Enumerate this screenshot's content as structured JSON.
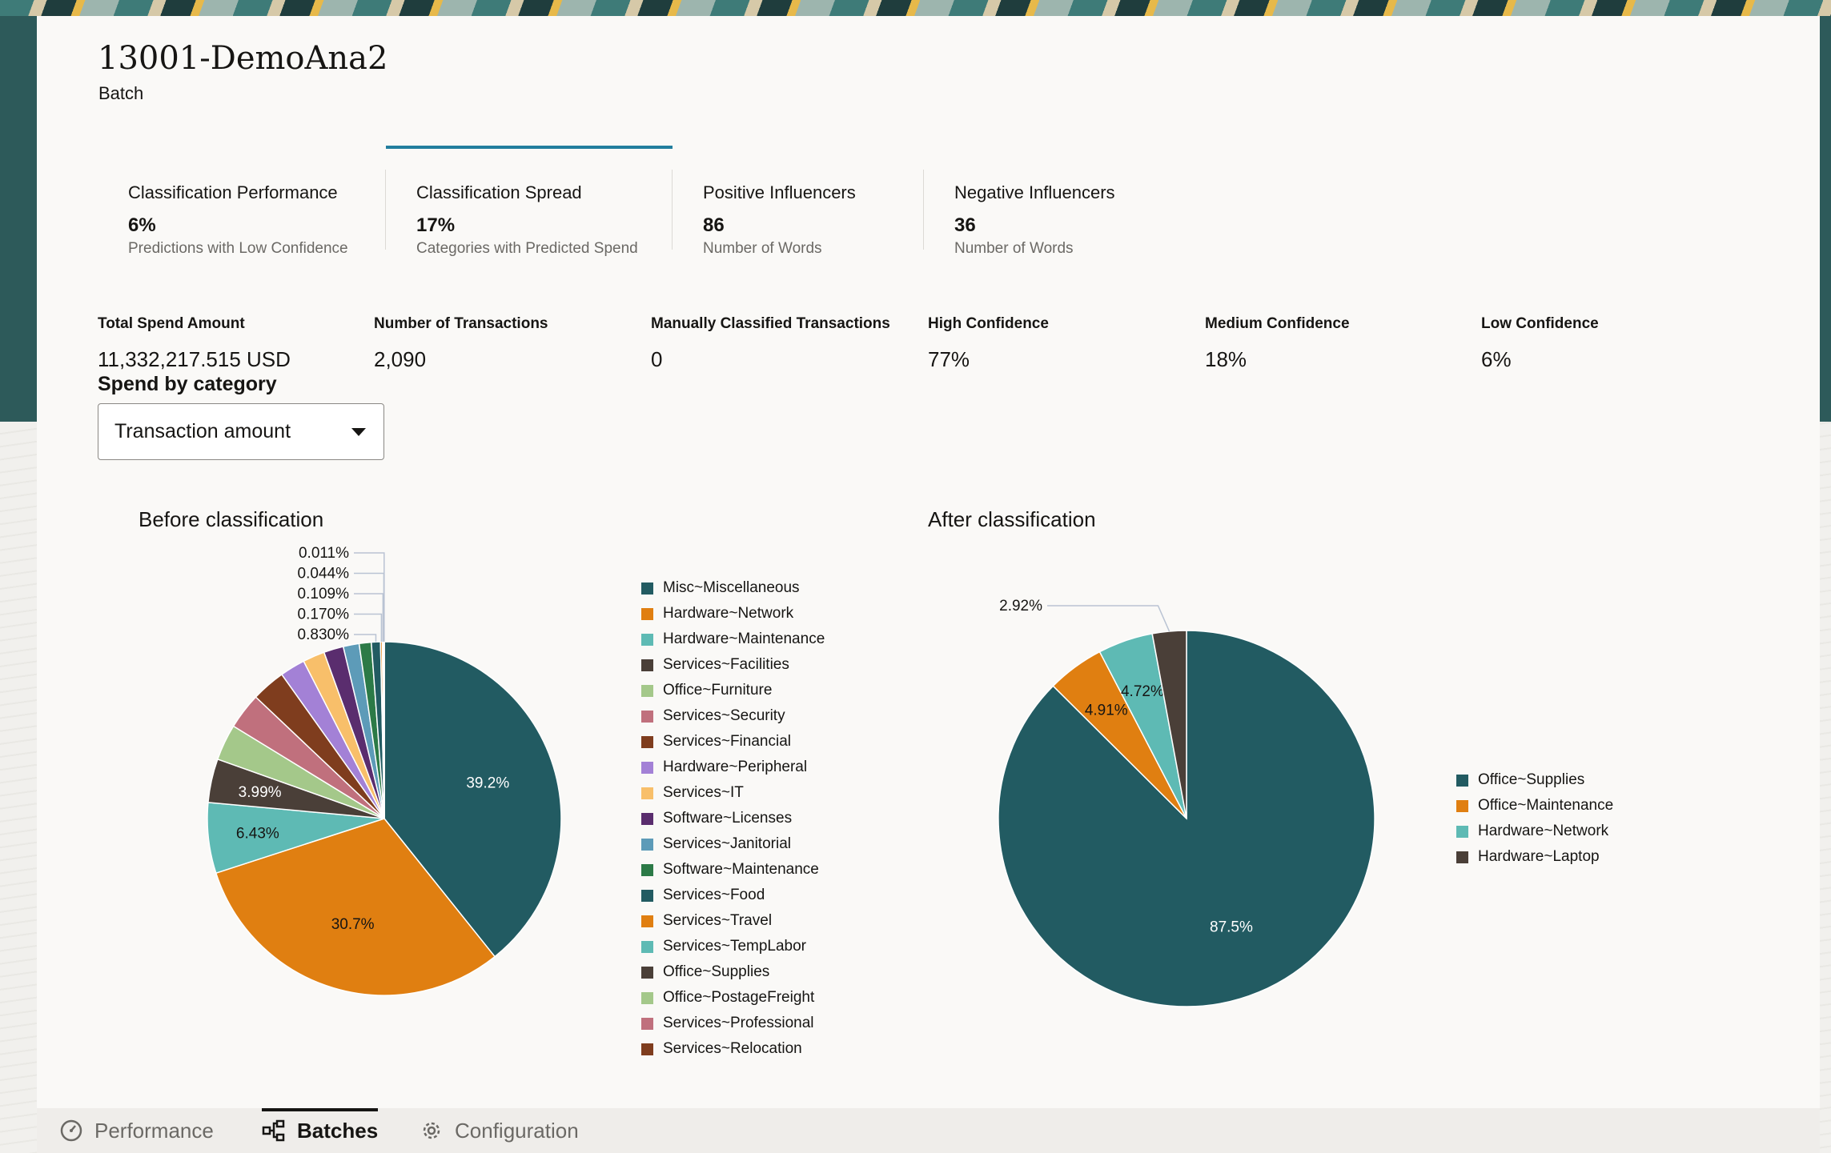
{
  "header": {
    "title": "13001-DemoAna2",
    "subtitle": "Batch"
  },
  "tabs": [
    {
      "label": "Classification Performance",
      "value": "6%",
      "sub": "Predictions with Low Confidence",
      "selected": false
    },
    {
      "label": "Classification Spread",
      "value": "17%",
      "sub": "Categories with Predicted Spend",
      "selected": true
    },
    {
      "label": "Positive Influencers",
      "value": "86",
      "sub": "Number of Words",
      "selected": false
    },
    {
      "label": "Negative Influencers",
      "value": "36",
      "sub": "Number of Words",
      "selected": false
    }
  ],
  "metrics": [
    {
      "label": "Total Spend Amount",
      "value": "11,332,217.515 USD"
    },
    {
      "label": "Number of Transactions",
      "value": "2,090"
    },
    {
      "label": "Manually Classified Transactions",
      "value": "0"
    },
    {
      "label": "High Confidence",
      "value": "77%"
    },
    {
      "label": "Medium Confidence",
      "value": "18%"
    },
    {
      "label": "Low Confidence",
      "value": "6%"
    }
  ],
  "spend": {
    "heading": "Spend by category",
    "select_value": "Transaction amount"
  },
  "chart_data": [
    {
      "type": "pie",
      "title": "Before classification",
      "slices": [
        {
          "name": "Misc~Miscellaneous",
          "value": 39.2,
          "color": "#225b62",
          "label": "39.2%"
        },
        {
          "name": "Hardware~Network",
          "value": 30.7,
          "color": "#e07f11",
          "label": "30.7%"
        },
        {
          "name": "Hardware~Maintenance",
          "value": 6.43,
          "color": "#5ebab4",
          "label": "6.43%"
        },
        {
          "name": "Services~Facilities",
          "value": 3.99,
          "color": "#4a3f38",
          "label": "3.99%"
        },
        {
          "name": "Office~Furniture",
          "value": 3.3,
          "color": "#a4c88a",
          "label": ""
        },
        {
          "name": "Services~Security",
          "value": 3.3,
          "color": "#c0707d",
          "label": ""
        },
        {
          "name": "Services~Financial",
          "value": 3.1,
          "color": "#7f3d1e",
          "label": ""
        },
        {
          "name": "Hardware~Peripheral",
          "value": 2.3,
          "color": "#a381d6",
          "label": ""
        },
        {
          "name": "Services~IT",
          "value": 2.0,
          "color": "#f8bf6a",
          "label": ""
        },
        {
          "name": "Software~Licenses",
          "value": 1.8,
          "color": "#5a2d6e",
          "label": ""
        },
        {
          "name": "Services~Janitorial",
          "value": 1.45,
          "color": "#5d9bb8",
          "label": ""
        },
        {
          "name": "Software~Maintenance",
          "value": 1.1,
          "color": "#2c7a47",
          "label": ""
        },
        {
          "name": "Services~Food",
          "value": 0.83,
          "color": "#225b62",
          "label": "0.830%"
        },
        {
          "name": "Services~Travel",
          "value": 0.17,
          "color": "#e07f11",
          "label": "0.170%"
        },
        {
          "name": "Services~TempLabor",
          "value": 0.109,
          "color": "#5ebab4",
          "label": "0.109%"
        },
        {
          "name": "Office~Supplies",
          "value": 0.044,
          "color": "#4a3f38",
          "label": "0.044%"
        },
        {
          "name": "Office~PostageFreight",
          "value": 0.011,
          "color": "#a4c88a",
          "label": "0.011%"
        },
        {
          "name": "Services~Professional",
          "value": 0.005,
          "color": "#c0707d",
          "label": ""
        },
        {
          "name": "Services~Relocation",
          "value": 0.003,
          "color": "#7f3d1e",
          "label": ""
        }
      ]
    },
    {
      "type": "pie",
      "title": "After classification",
      "slices": [
        {
          "name": "Office~Supplies",
          "value": 87.5,
          "color": "#225b62",
          "label": "87.5%"
        },
        {
          "name": "Office~Maintenance",
          "value": 4.91,
          "color": "#e07f11",
          "label": "4.91%"
        },
        {
          "name": "Hardware~Network",
          "value": 4.72,
          "color": "#5ebab4",
          "label": "4.72%"
        },
        {
          "name": "Hardware~Laptop",
          "value": 2.92,
          "color": "#4a3f38",
          "label": "2.92%"
        }
      ]
    }
  ],
  "bottom_nav": [
    {
      "label": "Performance",
      "icon": "gauge-icon",
      "selected": false
    },
    {
      "label": "Batches",
      "icon": "hierarchy-icon",
      "selected": true
    },
    {
      "label": "Configuration",
      "icon": "gear-icon",
      "selected": false
    }
  ]
}
